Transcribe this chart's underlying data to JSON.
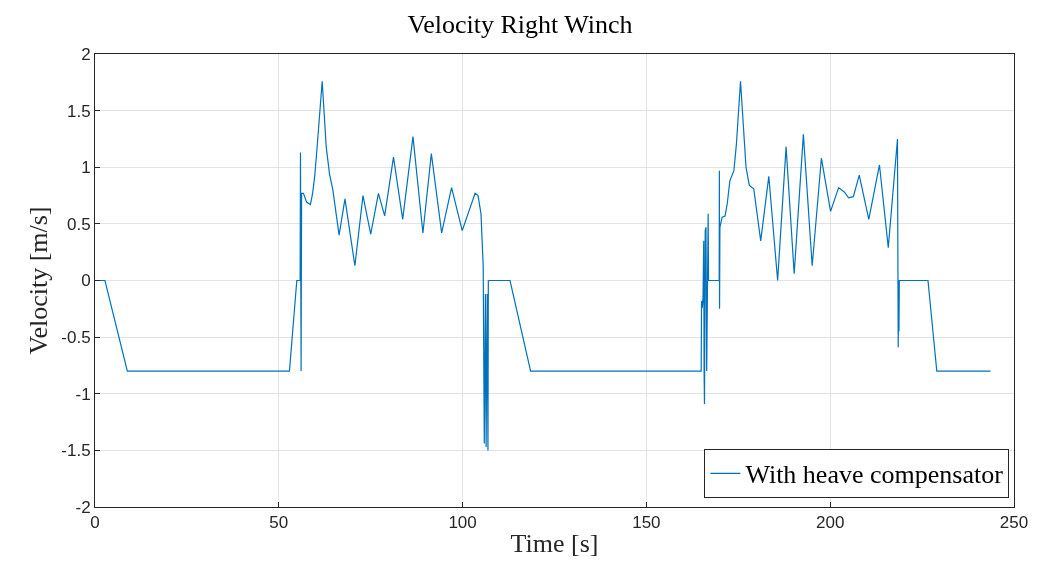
{
  "chart_data": {
    "type": "line",
    "title": "Velocity Right Winch",
    "xlabel": "Time [s]",
    "ylabel": "Velocity [m/s]",
    "xlim": [
      0,
      250
    ],
    "ylim": [
      -2,
      2
    ],
    "xticks": [
      0,
      50,
      100,
      150,
      200,
      250
    ],
    "yticks": [
      -2,
      -1.5,
      -1,
      -0.5,
      0,
      0.5,
      1,
      1.5,
      2
    ],
    "grid": true,
    "legend": "bottom right",
    "line_style": "solid",
    "marker": "none",
    "series": [
      {
        "name": "With heave compensator",
        "color": "#0072bd",
        "x": [
          0,
          2.7,
          8.8,
          52.9,
          54.9,
          55.8,
          55.9,
          56.06,
          56.2,
          56.7,
          57.6,
          58.6,
          59.2,
          59.8,
          60.5,
          61.8,
          62.9,
          63.8,
          64.7,
          66.4,
          68.0,
          70.7,
          72.9,
          75.0,
          77.1,
          78.8,
          81.2,
          83.7,
          86.5,
          89.2,
          91.5,
          94.3,
          97.0,
          99.9,
          103.4,
          104.2,
          105.0,
          105.6,
          105.9,
          106.2,
          106.4,
          106.7,
          106.9,
          107.0,
          112.9,
          118.5,
          164.9,
          165.0,
          165.2,
          165.4,
          165.6,
          165.7,
          165.8,
          166.0,
          166.2,
          166.4,
          166.8,
          166.9,
          169.8,
          169.85,
          169.9,
          170.0,
          170.6,
          171.4,
          172.0,
          172.7,
          173.8,
          174.5,
          175.6,
          177.1,
          178.0,
          179.2,
          181.1,
          183.3,
          185.7,
          188.0,
          190.2,
          192.7,
          195.1,
          197.6,
          200.1,
          202.3,
          203.9,
          205.0,
          206.3,
          207.9,
          210.5,
          213.4,
          215.8,
          218.3,
          218.5,
          218.6,
          218.7,
          218.8,
          226.6,
          229.0,
          243.6
        ],
        "values": [
          0,
          0,
          -0.8,
          -0.8,
          0,
          0,
          1.13,
          -0.8,
          0.77,
          0.77,
          0.69,
          0.67,
          0.77,
          0.93,
          1.21,
          1.76,
          1.18,
          0.94,
          0.8,
          0.4,
          0.72,
          0.13,
          0.75,
          0.41,
          0.77,
          0.57,
          1.09,
          0.54,
          1.27,
          0.42,
          1.12,
          0.42,
          0.82,
          0.44,
          0.77,
          0.75,
          0.59,
          0.13,
          -1.44,
          -0.12,
          -1.47,
          -0.12,
          -1.5,
          0,
          0,
          -0.8,
          -0.8,
          -0.18,
          -0.24,
          -0.16,
          0.35,
          -0.81,
          -1.09,
          0.44,
          0.47,
          -0.8,
          0.59,
          0,
          0,
          0.97,
          -0.25,
          0.47,
          0.56,
          0.57,
          0.68,
          0.88,
          0.97,
          1.21,
          1.76,
          1.0,
          0.84,
          0.81,
          0.35,
          0.92,
          0,
          1.18,
          0.06,
          1.29,
          0.13,
          1.08,
          0.61,
          0.82,
          0.78,
          0.73,
          0.74,
          0.93,
          0.54,
          1.02,
          0.29,
          1.25,
          -0.59,
          0,
          -0.45,
          0,
          0,
          -0.8,
          -0.8
        ]
      }
    ]
  }
}
